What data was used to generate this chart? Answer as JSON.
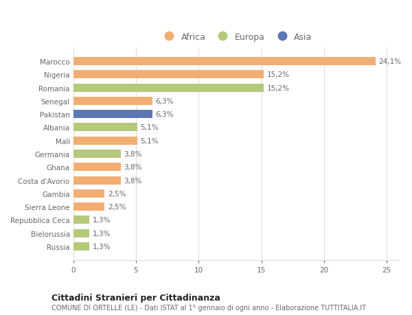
{
  "categories": [
    "Russia",
    "Bielorussia",
    "Repubblica Ceca",
    "Sierra Leone",
    "Gambia",
    "Costa d'Avorio",
    "Ghana",
    "Germania",
    "Mali",
    "Albania",
    "Pakistan",
    "Senegal",
    "Romania",
    "Nigeria",
    "Marocco"
  ],
  "values": [
    1.3,
    1.3,
    1.3,
    2.5,
    2.5,
    3.8,
    3.8,
    3.8,
    5.1,
    5.1,
    6.3,
    6.3,
    15.2,
    15.2,
    24.1
  ],
  "labels": [
    "1,3%",
    "1,3%",
    "1,3%",
    "2,5%",
    "2,5%",
    "3,8%",
    "3,8%",
    "3,8%",
    "5,1%",
    "5,1%",
    "6,3%",
    "6,3%",
    "15,2%",
    "15,2%",
    "24,1%"
  ],
  "continents": [
    "Europa",
    "Europa",
    "Europa",
    "Africa",
    "Africa",
    "Africa",
    "Africa",
    "Europa",
    "Africa",
    "Europa",
    "Asia",
    "Africa",
    "Europa",
    "Africa",
    "Africa"
  ],
  "colors": {
    "Africa": "#f2ae72",
    "Europa": "#b5c97a",
    "Asia": "#5b78b5"
  },
  "xlim": [
    0,
    26
  ],
  "xticks": [
    0,
    5,
    10,
    15,
    20,
    25
  ],
  "title": "Cittadini Stranieri per Cittadinanza",
  "subtitle": "COMUNE DI ORTELLE (LE) - Dati ISTAT al 1° gennaio di ogni anno - Elaborazione TUTTITALIA.IT",
  "bar_height": 0.62,
  "background_color": "#ffffff",
  "grid_color": "#dddddd",
  "label_color": "#666666",
  "text_color": "#666666",
  "legend_order": [
    "Africa",
    "Europa",
    "Asia"
  ],
  "title_fontsize": 9,
  "subtitle_fontsize": 7,
  "bar_label_fontsize": 7.5,
  "tick_fontsize": 7.5,
  "legend_fontsize": 9
}
